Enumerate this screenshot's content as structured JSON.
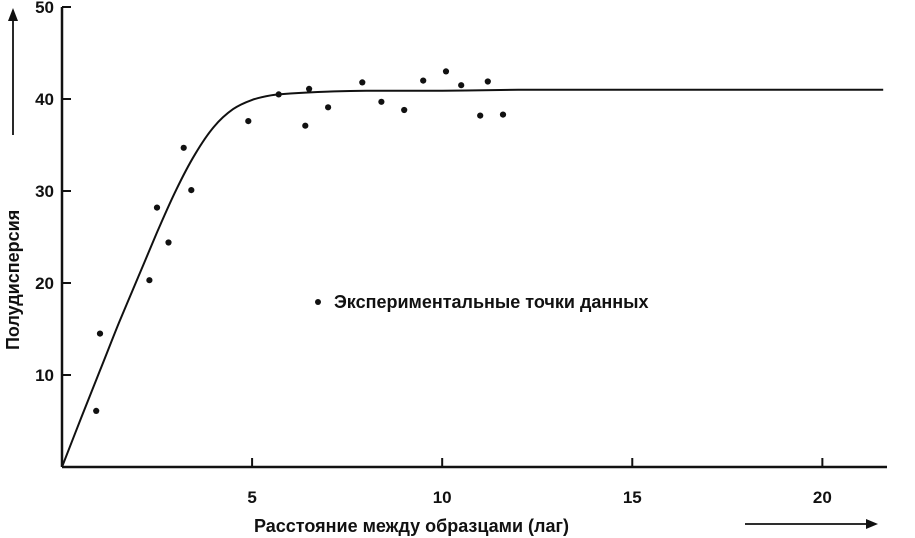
{
  "chart_data": {
    "type": "scatter",
    "xlabel": "Расстояние между образцами (лаг)",
    "ylabel": "Полудисперсия",
    "xlim": [
      0,
      21.7
    ],
    "ylim": [
      0,
      50
    ],
    "x_ticks": [
      5,
      10,
      15,
      20
    ],
    "y_ticks": [
      10,
      20,
      30,
      40,
      50
    ],
    "grid": false,
    "legend_position": "center",
    "series": [
      {
        "name": "Экспериментальные точки данных",
        "kind": "points",
        "x": [
          0.9,
          1.0,
          2.3,
          2.5,
          2.8,
          3.2,
          3.4,
          4.9,
          5.7,
          6.4,
          6.5,
          7.0,
          7.9,
          8.4,
          9.0,
          9.5,
          10.1,
          10.5,
          11.0,
          11.2,
          11.6
        ],
        "y": [
          6.1,
          14.5,
          20.3,
          28.2,
          24.4,
          34.7,
          30.1,
          37.6,
          40.5,
          37.1,
          41.1,
          39.1,
          41.8,
          39.7,
          38.8,
          42.0,
          43.0,
          41.5,
          38.2,
          41.9,
          38.3
        ]
      },
      {
        "name": "",
        "kind": "fit-curve",
        "x": [
          0,
          0.5,
          1,
          1.5,
          2,
          2.5,
          3,
          3.5,
          4,
          4.5,
          5,
          5.5,
          6,
          7,
          8,
          10,
          12,
          15,
          18,
          21.6
        ],
        "y": [
          0,
          5.3,
          10.5,
          15.7,
          20.6,
          25.5,
          30.1,
          34.0,
          37.0,
          38.9,
          39.9,
          40.4,
          40.6,
          40.8,
          40.9,
          40.9,
          41.0,
          41.0,
          41.0,
          41.0
        ]
      }
    ],
    "colors": {
      "ink": "#111111"
    }
  }
}
